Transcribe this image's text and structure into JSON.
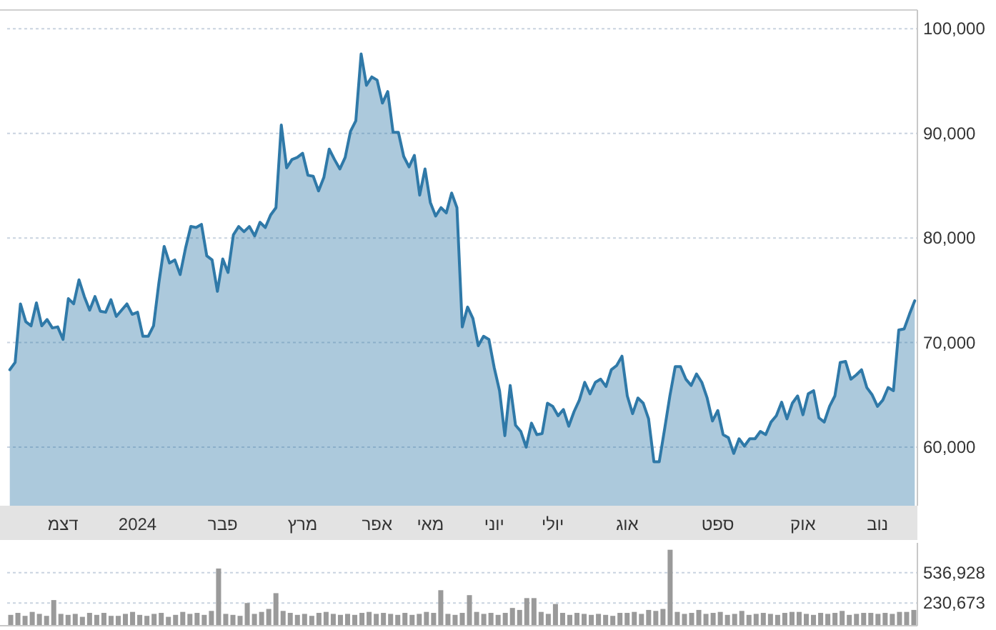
{
  "chart_data": [
    {
      "type": "area",
      "color": "#2f79a8",
      "grid": "y",
      "ylim": [
        54400,
        101800
      ],
      "categories": [
        null,
        null,
        null,
        null,
        null,
        null,
        null,
        null,
        null,
        null,
        "דצמ",
        null,
        null,
        null,
        null,
        null,
        null,
        null,
        null,
        null,
        null,
        null,
        null,
        null,
        "2024",
        null,
        null,
        null,
        null,
        null,
        null,
        null,
        null,
        null,
        null,
        null,
        null,
        null,
        null,
        null,
        "פבר",
        null,
        null,
        null,
        null,
        null,
        null,
        null,
        null,
        null,
        null,
        null,
        null,
        null,
        null,
        "מרץ",
        null,
        null,
        null,
        null,
        null,
        null,
        null,
        null,
        null,
        null,
        null,
        null,
        null,
        "אפר",
        null,
        null,
        null,
        null,
        null,
        null,
        null,
        null,
        null,
        "מאי",
        null,
        null,
        null,
        null,
        null,
        null,
        null,
        null,
        null,
        null,
        null,
        "יוני",
        null,
        null,
        null,
        null,
        null,
        null,
        null,
        null,
        null,
        null,
        "יולי",
        null,
        null,
        null,
        null,
        null,
        null,
        null,
        null,
        null,
        null,
        null,
        null,
        null,
        "אוג",
        null,
        null,
        null,
        null,
        null,
        null,
        null,
        null,
        null,
        null,
        null,
        null,
        null,
        null,
        null,
        null,
        "ספט",
        null,
        null,
        null,
        null,
        null,
        null,
        null,
        null,
        null,
        null,
        null,
        null,
        null,
        null,
        null,
        "אוק",
        null,
        null,
        null,
        null,
        null,
        null,
        null,
        null,
        null,
        null,
        null,
        null,
        null,
        "נוב",
        null,
        null,
        null,
        null,
        null,
        null,
        null
      ],
      "yticks": [
        {
          "value": 60000,
          "label": "60,000"
        },
        {
          "value": 70000,
          "label": "70,000"
        },
        {
          "value": 80000,
          "label": "80,000"
        },
        {
          "value": 90000,
          "label": "90,000"
        },
        {
          "value": 100000,
          "label": "100,000"
        }
      ],
      "values": [
        67400,
        68100,
        73700,
        72000,
        71600,
        73800,
        71600,
        72200,
        71400,
        71500,
        70300,
        74200,
        73700,
        76000,
        74400,
        73100,
        74400,
        73000,
        72900,
        74100,
        72500,
        73100,
        73700,
        72700,
        72900,
        70600,
        70600,
        71600,
        75700,
        79200,
        77600,
        77900,
        76500,
        79000,
        81100,
        81000,
        81300,
        78300,
        77900,
        74900,
        78000,
        76700,
        80300,
        81100,
        80600,
        81100,
        80200,
        81500,
        81000,
        82200,
        82900,
        90800,
        86700,
        87500,
        87700,
        88100,
        86000,
        85900,
        84500,
        85800,
        88500,
        87500,
        86600,
        87700,
        90200,
        91200,
        97600,
        94600,
        95400,
        95100,
        92900,
        94000,
        90100,
        90100,
        87800,
        86800,
        87900,
        84100,
        86600,
        83400,
        82100,
        82900,
        82400,
        84300,
        82900,
        71500,
        73400,
        72300,
        69700,
        70600,
        70300,
        67600,
        65400,
        61100,
        65900,
        62100,
        61500,
        60000,
        62300,
        61200,
        61300,
        64200,
        63900,
        63000,
        63600,
        62000,
        63400,
        64500,
        66200,
        65100,
        66200,
        66500,
        65800,
        67400,
        67800,
        68700,
        64900,
        63200,
        64700,
        64200,
        62700,
        58600,
        58600,
        61700,
        64900,
        67700,
        67700,
        66500,
        65900,
        67000,
        66200,
        64700,
        62500,
        63500,
        61200,
        60900,
        59400,
        60800,
        60100,
        60800,
        60800,
        61500,
        61200,
        62400,
        63000,
        64300,
        62700,
        64200,
        64900,
        63100,
        65100,
        65400,
        62800,
        62400,
        63900,
        64900,
        68100,
        68200,
        66500,
        66900,
        67400,
        65700,
        65000,
        63900,
        64500,
        65700,
        65400,
        71200,
        71300,
        72700,
        74000
      ]
    },
    {
      "type": "bar",
      "color": "#9a9a9a",
      "grid": "y",
      "tick_labels": "y",
      "ylim": [
        0,
        840000
      ],
      "yticks": [
        {
          "value": 230673,
          "label": "230,673"
        },
        {
          "value": 536928,
          "label": "536,928"
        }
      ],
      "categories": [
        null,
        null,
        null,
        null,
        null,
        null,
        null,
        null,
        null,
        null,
        null,
        null,
        null,
        null,
        null,
        null,
        null,
        null,
        null,
        null,
        null,
        null,
        null,
        null,
        null,
        null,
        null,
        null,
        null,
        null,
        null,
        null,
        null,
        null,
        null,
        null,
        null,
        null,
        null,
        null,
        null,
        null,
        null,
        null,
        null,
        null,
        null,
        null,
        null,
        null,
        null,
        null,
        null,
        null,
        null,
        null,
        null,
        null,
        null,
        null,
        null,
        null,
        null,
        null,
        null,
        null,
        null,
        null,
        null,
        null,
        null,
        null,
        null,
        null,
        null,
        null,
        null,
        null,
        null,
        null,
        null,
        null,
        null,
        null,
        null,
        null,
        null,
        null,
        null,
        null,
        null,
        null,
        null,
        null,
        null,
        null,
        null,
        null,
        null,
        null,
        null,
        null,
        null,
        null,
        null,
        null,
        null,
        null,
        null,
        null,
        null,
        null,
        null,
        null,
        null,
        null,
        null,
        null,
        null,
        null,
        null,
        null,
        null,
        null,
        null,
        null,
        null
      ],
      "values": [
        110000,
        130000,
        100000,
        140000,
        120000,
        100000,
        260000,
        120000,
        110000,
        120000,
        90000,
        130000,
        110000,
        130000,
        100000,
        100000,
        120000,
        140000,
        110000,
        100000,
        120000,
        130000,
        90000,
        110000,
        140000,
        120000,
        130000,
        110000,
        150000,
        580000,
        120000,
        110000,
        100000,
        230000,
        120000,
        140000,
        170000,
        330000,
        150000,
        130000,
        110000,
        120000,
        100000,
        130000,
        140000,
        120000,
        110000,
        120000,
        110000,
        130000,
        140000,
        120000,
        130000,
        120000,
        110000,
        130000,
        110000,
        120000,
        140000,
        130000,
        360000,
        120000,
        110000,
        130000,
        310000,
        140000,
        120000,
        130000,
        110000,
        130000,
        180000,
        160000,
        280000,
        280000,
        140000,
        120000,
        220000,
        130000,
        110000,
        130000,
        120000,
        110000,
        120000,
        110000,
        100000,
        130000,
        130000,
        140000,
        120000,
        160000,
        150000,
        170000,
        770000,
        140000,
        120000,
        130000,
        160000,
        120000,
        130000,
        140000,
        110000,
        120000,
        150000,
        110000,
        120000,
        130000,
        120000,
        110000,
        130000,
        140000,
        140000,
        120000,
        110000,
        130000,
        120000,
        130000,
        150000,
        110000,
        120000,
        130000,
        130000,
        120000,
        130000,
        120000,
        140000,
        140000,
        160000
      ]
    }
  ]
}
